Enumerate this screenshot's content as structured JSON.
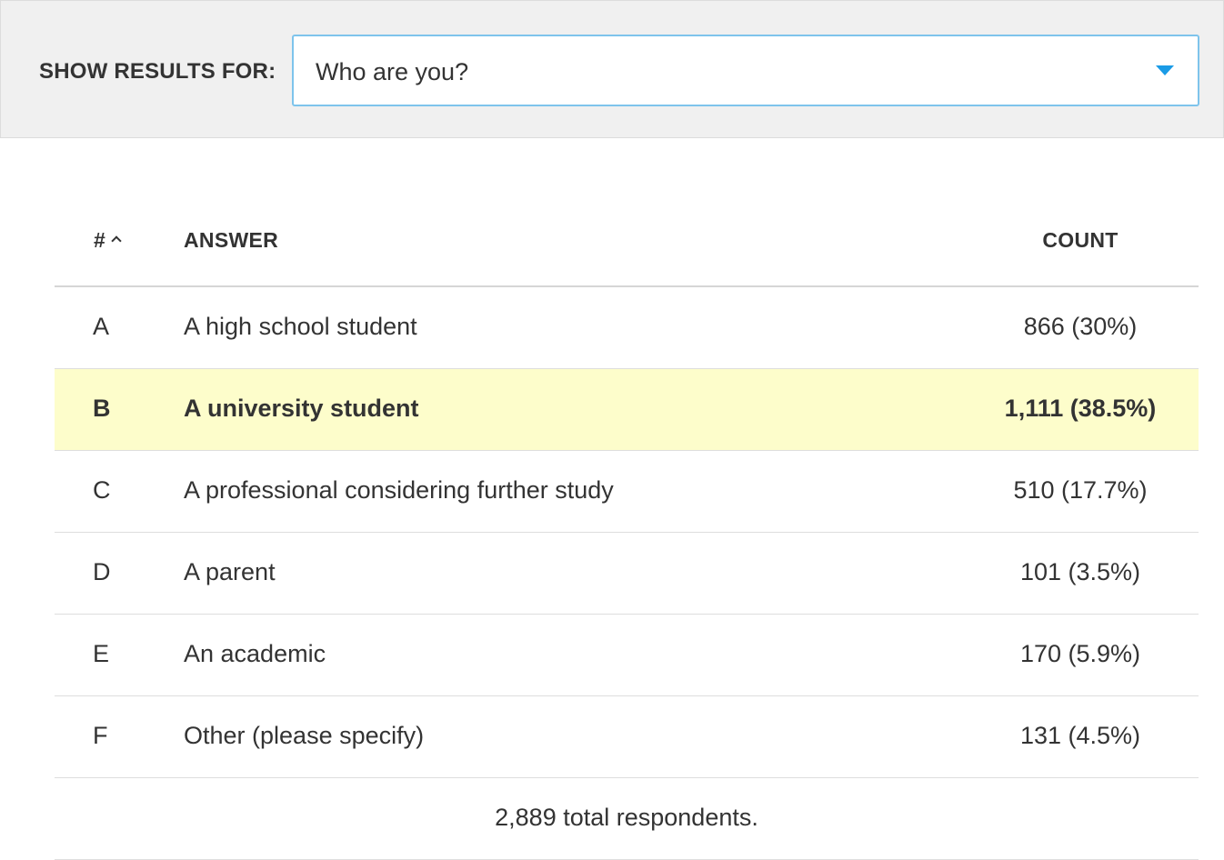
{
  "filter": {
    "label": "SHOW RESULTS FOR:",
    "selected": "Who are you?",
    "accent_color": "#1a9be6",
    "border_color": "#7ec4ec"
  },
  "table": {
    "headers": {
      "num": "#",
      "answer": "ANSWER",
      "count": "COUNT"
    },
    "sort_icon": "chevron-up-icon",
    "rows": [
      {
        "letter": "A",
        "answer": "A high school student",
        "count": "866 (30%)",
        "highlight": false
      },
      {
        "letter": "B",
        "answer": "A university student",
        "count": "1,111 (38.5%)",
        "highlight": true
      },
      {
        "letter": "C",
        "answer": "A professional considering further study",
        "count": "510 (17.7%)",
        "highlight": false
      },
      {
        "letter": "D",
        "answer": "A parent",
        "count": "101 (3.5%)",
        "highlight": false
      },
      {
        "letter": "E",
        "answer": "An academic",
        "count": "170 (5.9%)",
        "highlight": false
      },
      {
        "letter": "F",
        "answer": "Other (please specify)",
        "count": "131 (4.5%)",
        "highlight": false
      }
    ],
    "highlight_color": "#fdfdcb",
    "total": "2,889 total respondents."
  }
}
